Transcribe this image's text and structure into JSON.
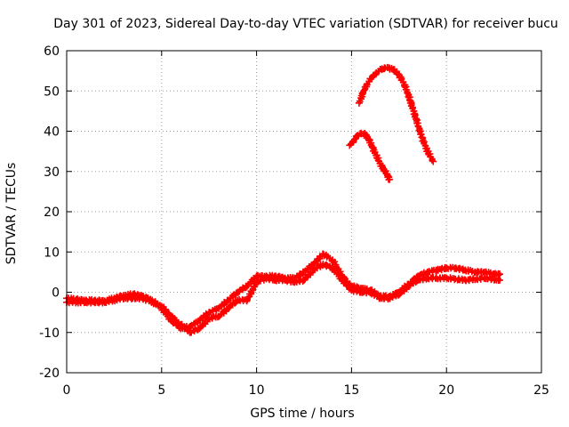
{
  "chart_data": {
    "type": "scatter",
    "title": "Day 301 of 2023, Sidereal Day-to-day VTEC variation (SDTVAR) for receiver bucu",
    "xlabel": "GPS time / hours",
    "ylabel": "SDTVAR / TECUs",
    "xlim": [
      0,
      25
    ],
    "ylim": [
      -20,
      60
    ],
    "xticks": [
      0,
      5,
      10,
      15,
      20,
      25
    ],
    "yticks": [
      -20,
      -10,
      0,
      10,
      20,
      30,
      40,
      50,
      60
    ],
    "grid": true,
    "marker": "plus",
    "color": "#ff0000",
    "series": [
      {
        "name": "main-band-a",
        "x": [
          0,
          0.5,
          1,
          1.5,
          2,
          2.5,
          3,
          3.5,
          4,
          4.5,
          5,
          5.5,
          6,
          6.5,
          7,
          7.5,
          8,
          8.5,
          9,
          9.5,
          10,
          10.5,
          11,
          11.5,
          12,
          12.5,
          13,
          13.5,
          14,
          14.5,
          15,
          15.5,
          16,
          16.5,
          17,
          17.5,
          18,
          18.5,
          19,
          19.5,
          20,
          20.5,
          21,
          21.5,
          22,
          22.5,
          22.8
        ],
        "y": [
          -1.5,
          -1.8,
          -2.0,
          -2.0,
          -2.2,
          -1.5,
          -0.8,
          -0.5,
          -1.0,
          -2.0,
          -4.0,
          -7.0,
          -9.0,
          -8.5,
          -7.0,
          -5.0,
          -4.0,
          -2.0,
          0.0,
          1.5,
          4.0,
          4.0,
          4.0,
          3.5,
          3.5,
          5.0,
          7.0,
          9.5,
          8.0,
          4.0,
          1.5,
          1.0,
          0.5,
          -1.0,
          -1.0,
          0.0,
          2.0,
          4.0,
          5.0,
          5.5,
          6.0,
          6.0,
          5.5,
          5.0,
          5.0,
          4.5,
          4.5
        ]
      },
      {
        "name": "main-band-b",
        "x": [
          0,
          1,
          2,
          3,
          4,
          5,
          5.5,
          6,
          6.5,
          7,
          7.5,
          8,
          8.5,
          9,
          9.5,
          10,
          10.5,
          11,
          11.5,
          12,
          12.5,
          13,
          13.5,
          14,
          14.5,
          15,
          15.5,
          16,
          16.5,
          17,
          17.5,
          18,
          18.5,
          19,
          20,
          21,
          22,
          22.8
        ],
        "y": [
          -2.5,
          -2.5,
          -2.5,
          -1.5,
          -1.5,
          -3.5,
          -6.0,
          -8.0,
          -10.0,
          -9.0,
          -6.5,
          -6.0,
          -4.0,
          -2.0,
          -2.0,
          2.5,
          3.5,
          3.0,
          3.0,
          2.5,
          3.0,
          5.5,
          7.0,
          6.0,
          3.0,
          0.5,
          0.0,
          0.0,
          -1.5,
          -1.5,
          -0.5,
          1.5,
          3.0,
          3.5,
          3.5,
          3.0,
          3.5,
          3.0
        ]
      },
      {
        "name": "arc-high",
        "x": [
          15.4,
          15.6,
          15.8,
          16.0,
          16.3,
          16.6,
          16.9,
          17.2,
          17.5,
          17.8,
          18.1,
          18.4,
          18.7,
          19.0,
          19.3
        ],
        "y": [
          47.0,
          49.5,
          51.5,
          53.0,
          54.5,
          55.5,
          55.8,
          55.3,
          54.0,
          51.5,
          47.5,
          43.0,
          38.5,
          35.0,
          32.5
        ]
      },
      {
        "name": "arc-low",
        "x": [
          14.9,
          15.1,
          15.3,
          15.5,
          15.7,
          15.9,
          16.1,
          16.3,
          16.5,
          16.7,
          16.9,
          17.0
        ],
        "y": [
          36.5,
          37.5,
          38.8,
          39.5,
          39.3,
          38.0,
          36.0,
          34.0,
          32.0,
          30.5,
          29.0,
          28.0
        ]
      }
    ]
  }
}
